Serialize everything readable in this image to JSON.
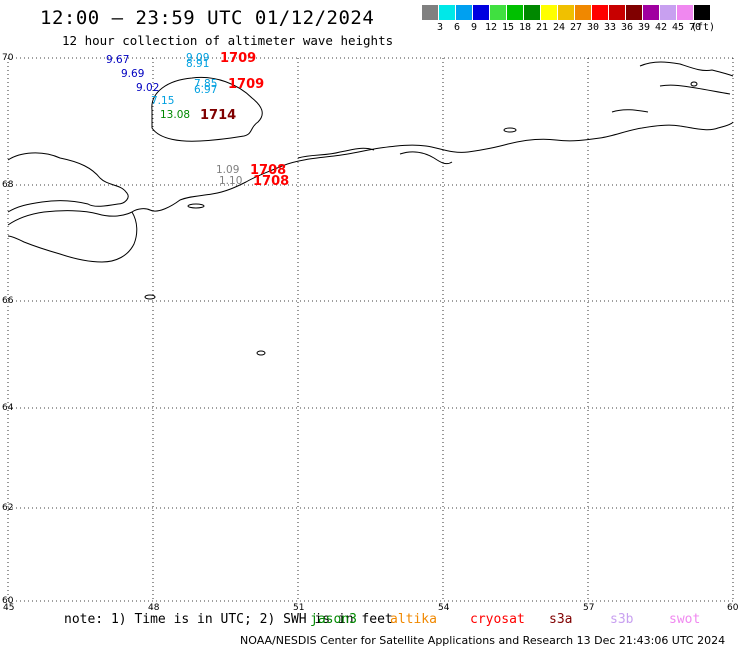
{
  "header": {
    "title": "12:00 — 23:59 UTC 01/12/2024",
    "subtitle": "12 hour collection of altimeter wave heights"
  },
  "legend": {
    "unit": "(ft)",
    "bins": [
      {
        "label": "3",
        "color": "#808080"
      },
      {
        "label": "6",
        "color": "#00e8e8"
      },
      {
        "label": "9",
        "color": "#00a0f0"
      },
      {
        "label": "12",
        "color": "#0000e0"
      },
      {
        "label": "15",
        "color": "#40e040"
      },
      {
        "label": "18",
        "color": "#00c000"
      },
      {
        "label": "21",
        "color": "#008800"
      },
      {
        "label": "24",
        "color": "#ffff00"
      },
      {
        "label": "27",
        "color": "#f0c000"
      },
      {
        "label": "30",
        "color": "#f08800"
      },
      {
        "label": "33",
        "color": "#ff0000"
      },
      {
        "label": "36",
        "color": "#c80000"
      },
      {
        "label": "39",
        "color": "#800000"
      },
      {
        "label": "42",
        "color": "#a000a0"
      },
      {
        "label": "45",
        "color": "#c8a0f0"
      },
      {
        "label": "70",
        "color": "#f088f0"
      },
      {
        "label": "",
        "color": "#000000"
      }
    ]
  },
  "map": {
    "lat_labels": [
      "70",
      "68",
      "66",
      "64",
      "62",
      "60"
    ],
    "lon_labels": [
      "45",
      "48",
      "51",
      "54",
      "57",
      "60"
    ],
    "observations": [
      {
        "text": "9.67",
        "color": "#0000c0"
      },
      {
        "text": "9.69",
        "color": "#0000c0"
      },
      {
        "text": "9.02",
        "color": "#0000c0"
      },
      {
        "text": "9.09",
        "color": "#00a0e0"
      },
      {
        "text": "8.91",
        "color": "#00a0e0"
      },
      {
        "text": "7.85",
        "color": "#00a0e0"
      },
      {
        "text": "6.97",
        "color": "#00a0e0"
      },
      {
        "text": "7.15",
        "color": "#00a0e0"
      },
      {
        "text": "13.08",
        "color": "#008800"
      },
      {
        "text": "1.09",
        "color": "#808080"
      },
      {
        "text": "1.10",
        "color": "#808080"
      }
    ],
    "times": [
      {
        "text": "1709",
        "color": "#ff0000"
      },
      {
        "text": "1709",
        "color": "#ff0000"
      },
      {
        "text": "1714",
        "color": "#800000"
      },
      {
        "text": "1708",
        "color": "#ff0000"
      },
      {
        "text": "1708",
        "color": "#ff0000"
      }
    ]
  },
  "footer": {
    "note": "note: 1) Time is in UTC; 2) SWH is in feet",
    "satellites": [
      {
        "name": "jason3",
        "color": "#008800"
      },
      {
        "name": "altika",
        "color": "#f08800"
      },
      {
        "name": "cryosat",
        "color": "#ff0000"
      },
      {
        "name": "s3a",
        "color": "#800000"
      },
      {
        "name": "s3b",
        "color": "#c8a0f0"
      },
      {
        "name": "swot",
        "color": "#f088f0"
      }
    ],
    "credit": "NOAA/NESDIS Center for Satellite Applications and Research    13 Dec 21:43:06 UTC 2024"
  }
}
